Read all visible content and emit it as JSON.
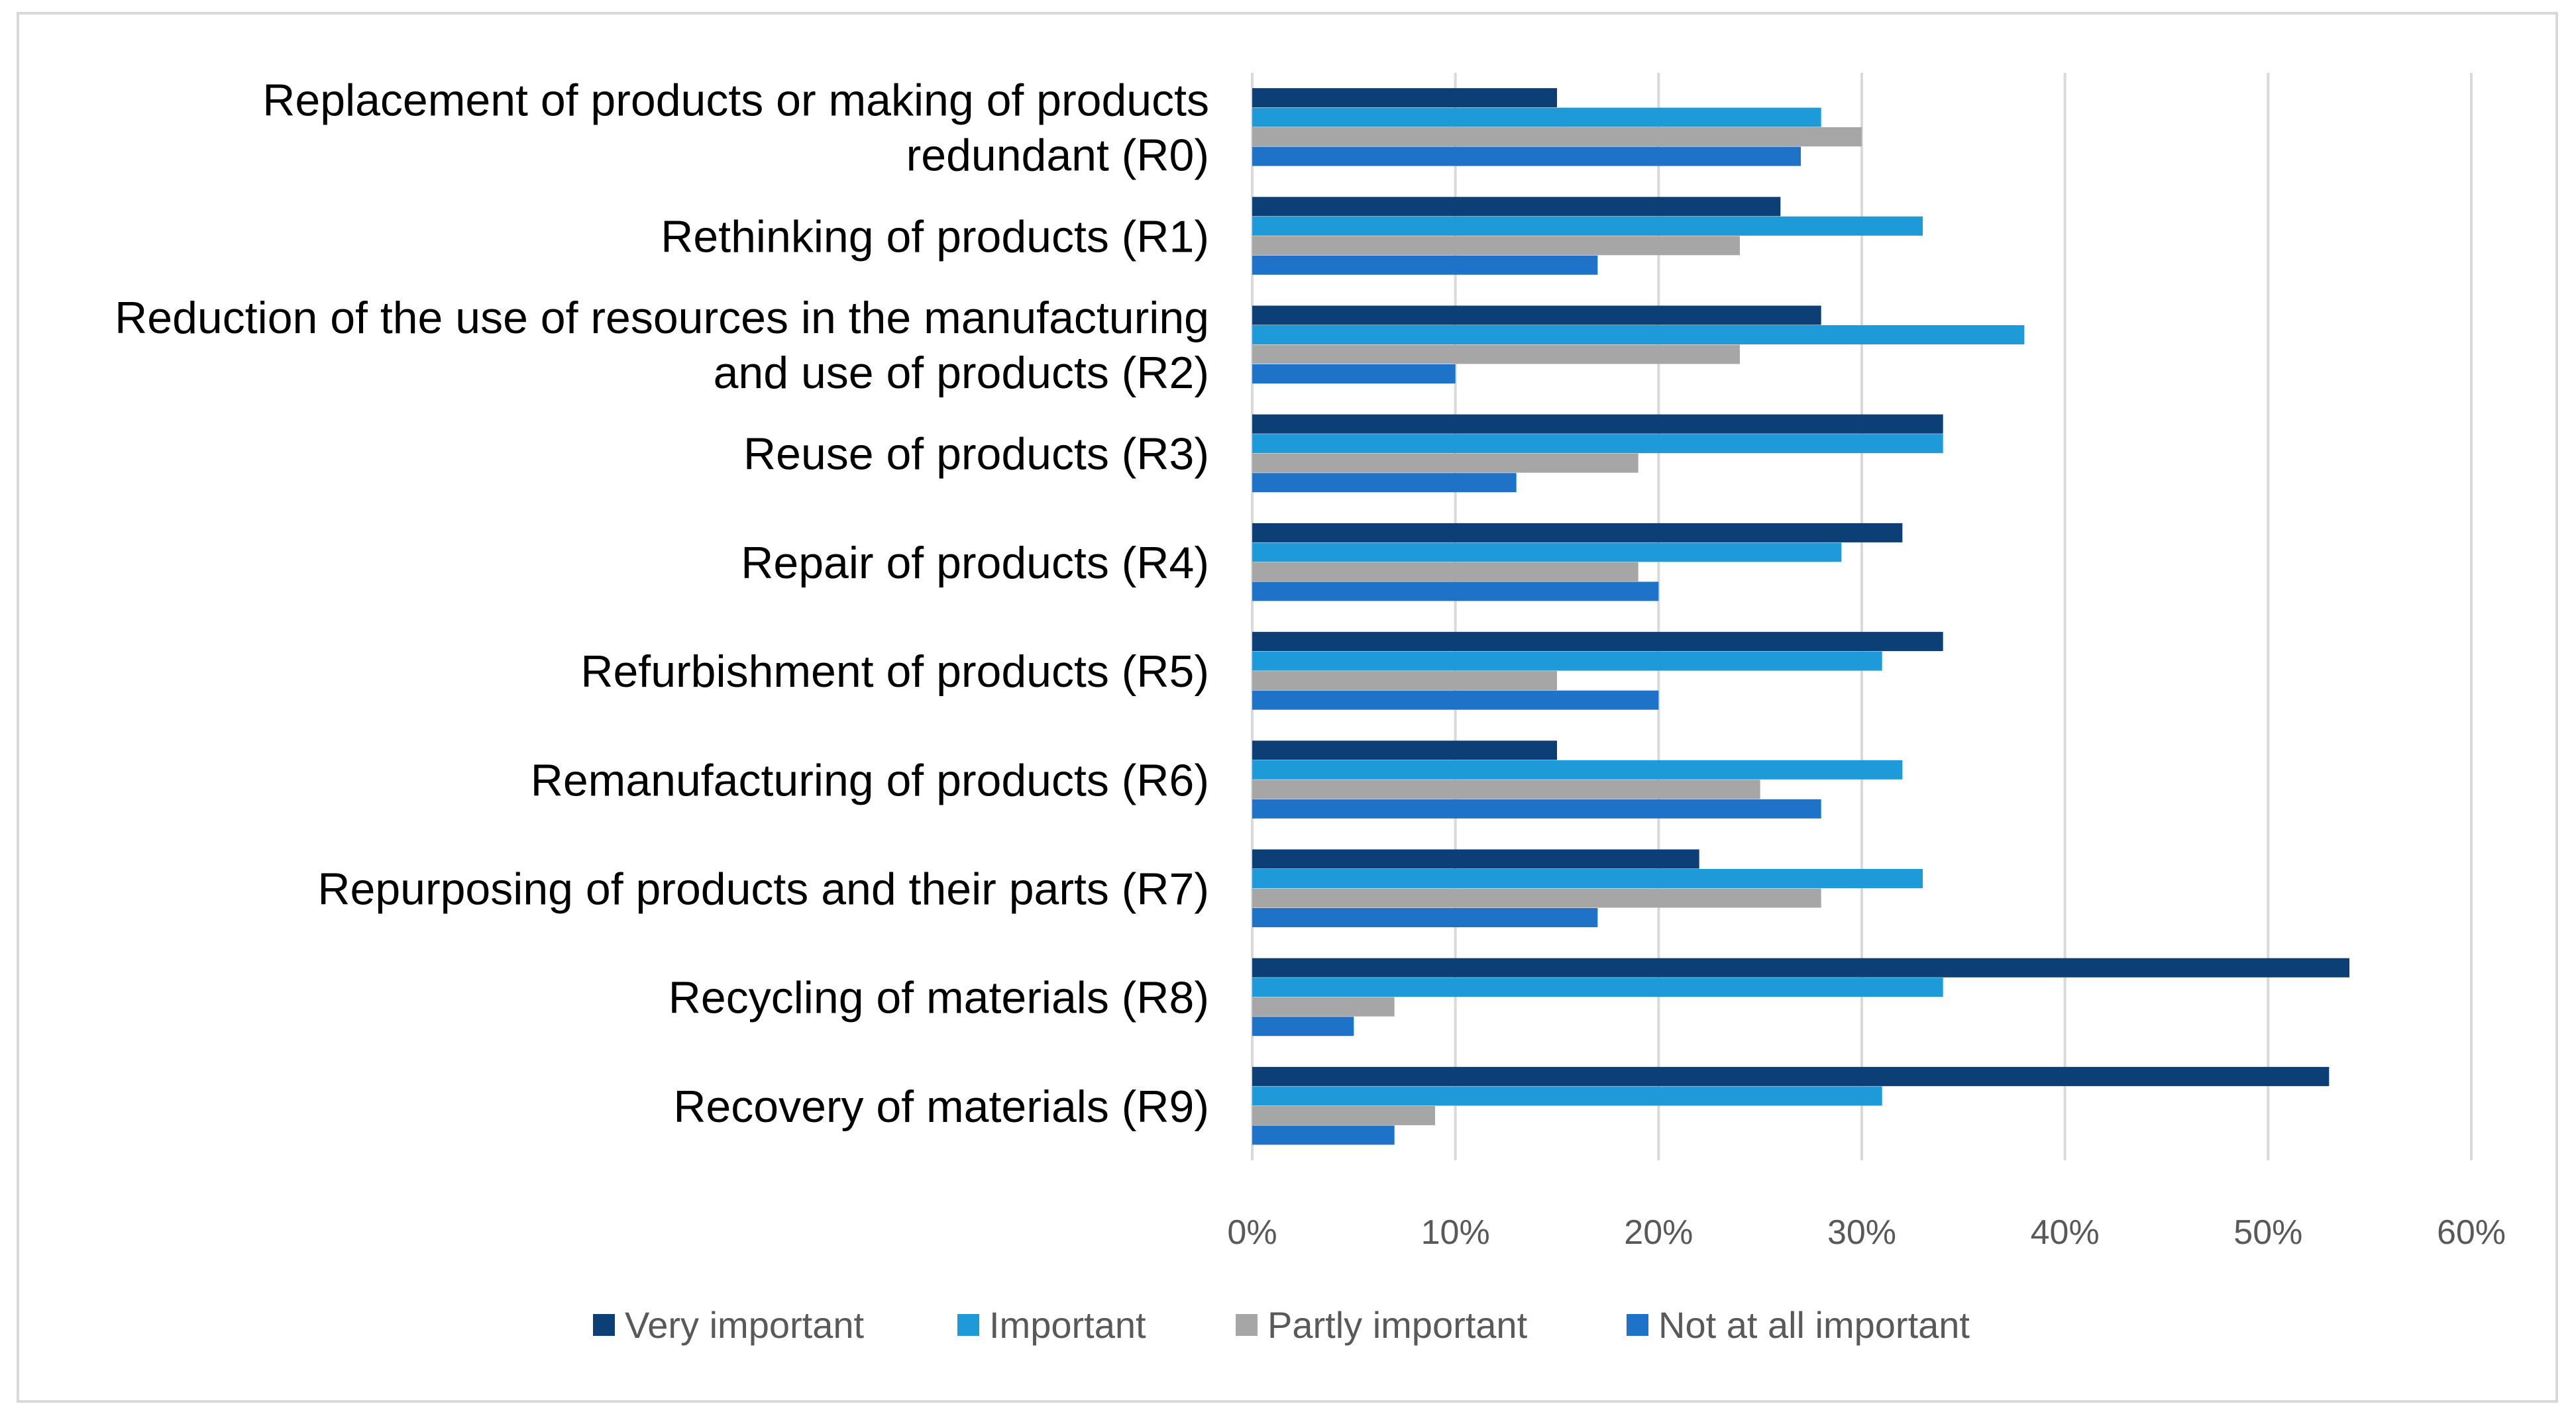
{
  "chart_data": {
    "type": "bar",
    "orientation": "horizontal",
    "title": "",
    "xlabel": "",
    "ylabel": "",
    "xlim": [
      0,
      60
    ],
    "grid": true,
    "legend_position": "bottom",
    "tick_labels": [
      "0%",
      "10%",
      "20%",
      "30%",
      "40%",
      "50%",
      "60%"
    ],
    "categories": [
      [
        "Replacement of products or making of products",
        "redundant (R0)"
      ],
      [
        "Rethinking of products (R1)"
      ],
      [
        "Reduction of the use of resources in the manufacturing",
        "and use of products (R2)"
      ],
      [
        "Reuse of products (R3)"
      ],
      [
        "Repair of products (R4)"
      ],
      [
        "Refurbishment of products (R5)"
      ],
      [
        "Remanufacturing of products (R6)"
      ],
      [
        "Repurposing of products and their parts (R7)"
      ],
      [
        "Recycling of materials (R8)"
      ],
      [
        "Recovery of materials (R9)"
      ]
    ],
    "series": [
      {
        "name": "Very important",
        "color": "#0b3f75",
        "values": [
          15,
          26,
          28,
          34,
          32,
          34,
          15,
          22,
          54,
          53
        ]
      },
      {
        "name": "Important",
        "color": "#1f9ad8",
        "values": [
          28,
          33,
          38,
          34,
          29,
          31,
          32,
          33,
          34,
          31
        ]
      },
      {
        "name": "Partly important",
        "color": "#a6a6a6",
        "values": [
          30,
          24,
          24,
          19,
          19,
          15,
          25,
          28,
          7,
          9
        ]
      },
      {
        "name": "Not at all important",
        "color": "#1e73c9",
        "values": [
          27,
          17,
          10,
          13,
          20,
          20,
          28,
          17,
          5,
          7
        ]
      }
    ]
  }
}
